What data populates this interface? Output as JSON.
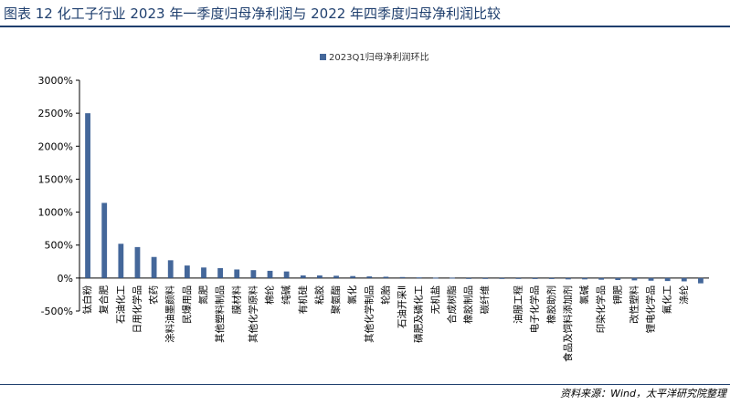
{
  "title": "图表 12 化工子行业 2023 年一季度归母净利润与 2022 年四季度归母净利润比较",
  "source": "资料来源：Wind，太平洋研究院整理",
  "colors": {
    "bar": "#44679a",
    "axis": "#000000",
    "title": "#1f3f6e"
  },
  "chart_data": {
    "type": "bar",
    "series": [
      {
        "name": "2023Q1归母净利润环比",
        "values": [
          2500,
          1140,
          520,
          470,
          320,
          270,
          190,
          160,
          150,
          130,
          120,
          110,
          100,
          40,
          40,
          35,
          30,
          25,
          20,
          15,
          10,
          5,
          5,
          -5,
          -10,
          -10,
          -10,
          -15,
          -15,
          -20,
          -20,
          -25,
          -30,
          -35,
          -40,
          -45,
          -50,
          -80
        ]
      }
    ],
    "categories": [
      "钛白粉",
      "复合肥",
      "石油化工",
      "日用化学品",
      "农药",
      "涂料油墨颜料",
      "民爆用品",
      "氮肥",
      "其他塑料制品",
      "膜材料",
      "其他化学原料",
      "棉纶",
      "纯碱",
      "有机硅",
      "粘胶",
      "聚氨酯",
      "氯化",
      "其他化学制品",
      "轮胎",
      "石油开采Ⅱ",
      "磷肥及磷化工",
      "无机盐",
      "合成树脂",
      "橡胶制品",
      "碳纤维",
      "",
      "油服工程",
      "电子化学品",
      "橡胶助剂",
      "食品及饲料添加剂",
      "氯碱",
      "印染化学品",
      "钾肥",
      "改性塑料",
      "锂电化学品",
      "氟化工",
      "涤纶",
      ""
    ],
    "legend": "top-center",
    "ylim": [
      -500,
      3000
    ],
    "ytick_step": 500,
    "ytick_format": "percent",
    "grid": false
  }
}
